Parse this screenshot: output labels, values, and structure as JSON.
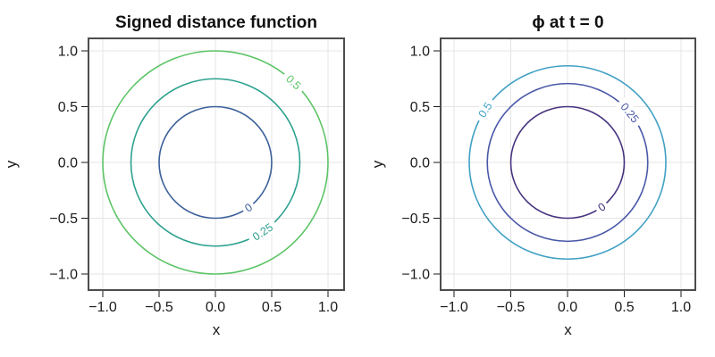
{
  "figure": {
    "background": "#ffffff"
  },
  "style": {
    "spine_color": "#4d4d4d",
    "grid_color": "#e4e4e4",
    "tick_color": "#1a1a1a",
    "text_color": "#111111",
    "contour_linewidth": 1.6
  },
  "chart_data": [
    {
      "type": "contour",
      "title": "Signed distance function",
      "xlabel": "x",
      "ylabel": "y",
      "xlim": [
        -1.13,
        1.14
      ],
      "ylim": [
        -1.14,
        1.11
      ],
      "grid": true,
      "legend": "none",
      "center": [
        0,
        0
      ],
      "xticks": {
        "values": [
          -1,
          -0.5,
          0,
          0.5,
          1
        ],
        "labels": [
          "−1.0",
          "−0.5",
          "0.0",
          "0.5",
          "1.0"
        ]
      },
      "yticks": {
        "values": [
          1,
          0.5,
          0,
          -0.5,
          -1
        ],
        "labels": [
          "1.0",
          "0.5",
          "0.0",
          "−0.5",
          "−1.0"
        ]
      },
      "contours": [
        {
          "level": "0",
          "radius": 0.5,
          "color": "#3b5f99",
          "label_angle_deg": -54
        },
        {
          "level": "0.25",
          "radius": 0.75,
          "color": "#2ba18f",
          "label_angle_deg": -56
        },
        {
          "level": "0.5",
          "radius": 1.0,
          "color": "#5cc466",
          "label_angle_deg": 46
        }
      ]
    },
    {
      "type": "contour",
      "title": "ϕ at t = 0",
      "xlabel": "x",
      "ylabel": "y",
      "xlim": [
        -1.13,
        1.14
      ],
      "ylim": [
        -1.14,
        1.11
      ],
      "grid": true,
      "legend": "none",
      "center": [
        0,
        0
      ],
      "xticks": {
        "values": [
          -1,
          -0.5,
          0,
          0.5,
          1
        ],
        "labels": [
          "−1.0",
          "−0.5",
          "0.0",
          "0.5",
          "1.0"
        ]
      },
      "yticks": {
        "values": [
          1,
          0.5,
          0,
          -0.5,
          -1
        ],
        "labels": [
          "1.0",
          "0.5",
          "0.0",
          "−0.5",
          "−1.0"
        ]
      },
      "contours": [
        {
          "level": "0",
          "radius": 0.5,
          "color": "#46327e",
          "label_angle_deg": -53
        },
        {
          "level": "0.25",
          "radius": 0.707,
          "color": "#4a58a8",
          "label_angle_deg": 39
        },
        {
          "level": "0.5",
          "radius": 0.866,
          "color": "#41a0c4",
          "label_angle_deg": 147
        }
      ]
    }
  ]
}
